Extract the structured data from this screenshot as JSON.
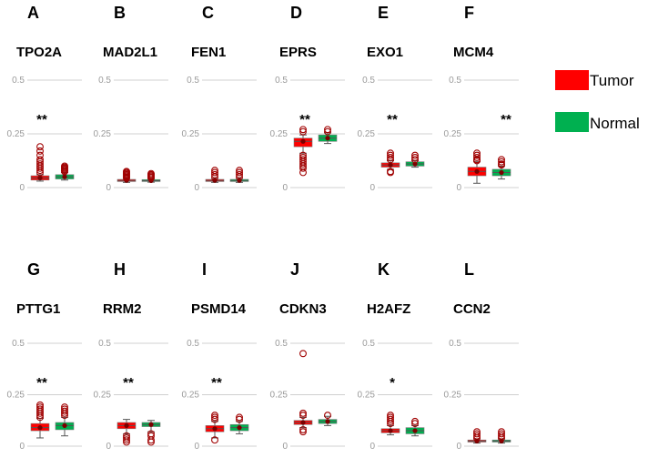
{
  "chart_data": {
    "type": "boxplot",
    "y_ticks": [
      "0.5",
      "0.25",
      "0"
    ],
    "ylim": [
      0,
      0.5
    ],
    "legend": [
      {
        "label": "Tumor",
        "color": "#ff0000"
      },
      {
        "label": "Normal",
        "color": "#00b050"
      }
    ],
    "panels": [
      {
        "letter": "A",
        "gene": "TPO2A",
        "sig": "**",
        "tumor": {
          "q1": 0.035,
          "median": 0.045,
          "q3": 0.055,
          "mean": 0.045,
          "lo": 0.03,
          "hi": 0.06,
          "outliers": [
            0.07,
            0.08,
            0.09,
            0.1,
            0.11,
            0.12,
            0.13,
            0.15,
            0.17,
            0.19
          ]
        },
        "normal": {
          "q1": 0.04,
          "median": 0.05,
          "q3": 0.06,
          "mean": 0.05,
          "lo": 0.035,
          "hi": 0.07,
          "outliers": [
            0.075,
            0.08,
            0.085,
            0.09,
            0.095,
            0.1
          ]
        }
      },
      {
        "letter": "B",
        "gene": "MAD2L1",
        "sig": "",
        "tumor": {
          "q1": 0.028,
          "median": 0.033,
          "q3": 0.038,
          "mean": 0.033,
          "lo": 0.024,
          "hi": 0.042,
          "outliers": [
            0.045,
            0.05,
            0.055,
            0.06,
            0.065,
            0.07,
            0.075
          ]
        },
        "normal": {
          "q1": 0.028,
          "median": 0.032,
          "q3": 0.037,
          "mean": 0.032,
          "lo": 0.025,
          "hi": 0.04,
          "outliers": [
            0.045,
            0.05,
            0.055,
            0.06,
            0.065
          ]
        }
      },
      {
        "letter": "C",
        "gene": "FEN1",
        "sig": "",
        "tumor": {
          "q1": 0.028,
          "median": 0.033,
          "q3": 0.038,
          "mean": 0.033,
          "lo": 0.024,
          "hi": 0.042,
          "outliers": [
            0.05,
            0.06,
            0.07,
            0.08
          ]
        },
        "normal": {
          "q1": 0.028,
          "median": 0.033,
          "q3": 0.038,
          "mean": 0.033,
          "lo": 0.024,
          "hi": 0.042,
          "outliers": [
            0.05,
            0.06,
            0.07,
            0.08
          ]
        }
      },
      {
        "letter": "D",
        "gene": "EPRS",
        "sig": "**",
        "tumor": {
          "q1": 0.19,
          "median": 0.215,
          "q3": 0.23,
          "mean": 0.215,
          "lo": 0.16,
          "hi": 0.245,
          "outliers": [
            0.07,
            0.09,
            0.1,
            0.11,
            0.12,
            0.13,
            0.14,
            0.15,
            0.26,
            0.27
          ]
        },
        "normal": {
          "q1": 0.215,
          "median": 0.23,
          "q3": 0.245,
          "mean": 0.23,
          "lo": 0.205,
          "hi": 0.255,
          "outliers": [
            0.26,
            0.27
          ]
        }
      },
      {
        "letter": "E",
        "gene": "EXO1",
        "sig": "**",
        "tumor": {
          "q1": 0.095,
          "median": 0.105,
          "q3": 0.115,
          "mean": 0.105,
          "lo": 0.085,
          "hi": 0.125,
          "outliers": [
            0.07,
            0.075,
            0.13,
            0.14,
            0.15,
            0.16
          ]
        },
        "normal": {
          "q1": 0.1,
          "median": 0.11,
          "q3": 0.12,
          "mean": 0.11,
          "lo": 0.095,
          "hi": 0.125,
          "outliers": [
            0.13,
            0.14,
            0.15
          ]
        }
      },
      {
        "letter": "F",
        "gene": "MCM4",
        "sig": "**",
        "tumor": {
          "q1": 0.055,
          "median": 0.075,
          "q3": 0.095,
          "mean": 0.075,
          "lo": 0.02,
          "hi": 0.12,
          "outliers": [
            0.125,
            0.13,
            0.14,
            0.15,
            0.16
          ]
        },
        "normal": {
          "q1": 0.055,
          "median": 0.07,
          "q3": 0.085,
          "mean": 0.07,
          "lo": 0.04,
          "hi": 0.1,
          "outliers": [
            0.105,
            0.11,
            0.12,
            0.13
          ]
        }
      },
      {
        "letter": "G",
        "gene": "PTTG1",
        "sig": "**",
        "tumor": {
          "q1": 0.075,
          "median": 0.09,
          "q3": 0.11,
          "mean": 0.09,
          "lo": 0.04,
          "hi": 0.135,
          "outliers": [
            0.14,
            0.15,
            0.16,
            0.17,
            0.18,
            0.19,
            0.2
          ]
        },
        "normal": {
          "q1": 0.08,
          "median": 0.1,
          "q3": 0.115,
          "mean": 0.1,
          "lo": 0.05,
          "hi": 0.14,
          "outliers": [
            0.15,
            0.16,
            0.17,
            0.18,
            0.19
          ]
        }
      },
      {
        "letter": "H",
        "gene": "RRM2",
        "sig": "**",
        "tumor": {
          "q1": 0.085,
          "median": 0.1,
          "q3": 0.115,
          "mean": 0.1,
          "lo": 0.06,
          "hi": 0.13,
          "outliers": [
            0.02,
            0.03,
            0.04,
            0.05
          ]
        },
        "normal": {
          "q1": 0.095,
          "median": 0.105,
          "q3": 0.115,
          "mean": 0.105,
          "lo": 0.07,
          "hi": 0.125,
          "outliers": [
            0.02,
            0.03,
            0.05,
            0.06
          ]
        }
      },
      {
        "letter": "I",
        "gene": "PSMD14",
        "sig": "**",
        "tumor": {
          "q1": 0.07,
          "median": 0.085,
          "q3": 0.1,
          "mean": 0.085,
          "lo": 0.04,
          "hi": 0.12,
          "outliers": [
            0.03,
            0.13,
            0.14,
            0.15
          ]
        },
        "normal": {
          "q1": 0.075,
          "median": 0.09,
          "q3": 0.105,
          "mean": 0.09,
          "lo": 0.06,
          "hi": 0.12,
          "outliers": [
            0.13,
            0.14
          ]
        }
      },
      {
        "letter": "J",
        "gene": "CDKN3",
        "sig": "",
        "tumor": {
          "q1": 0.105,
          "median": 0.115,
          "q3": 0.125,
          "mean": 0.115,
          "lo": 0.09,
          "hi": 0.14,
          "outliers": [
            0.07,
            0.08,
            0.15,
            0.16,
            0.45
          ]
        },
        "normal": {
          "q1": 0.11,
          "median": 0.12,
          "q3": 0.13,
          "mean": 0.12,
          "lo": 0.1,
          "hi": 0.145,
          "outliers": [
            0.15
          ]
        }
      },
      {
        "letter": "K",
        "gene": "H2AFZ",
        "sig": "*",
        "tumor": {
          "q1": 0.065,
          "median": 0.075,
          "q3": 0.085,
          "mean": 0.075,
          "lo": 0.055,
          "hi": 0.1,
          "outliers": [
            0.11,
            0.12,
            0.13,
            0.14,
            0.15
          ]
        },
        "normal": {
          "q1": 0.06,
          "median": 0.075,
          "q3": 0.09,
          "mean": 0.075,
          "lo": 0.05,
          "hi": 0.1,
          "outliers": [
            0.11,
            0.12
          ]
        }
      },
      {
        "letter": "L",
        "gene": "CCN2",
        "sig": "",
        "tumor": {
          "q1": 0.02,
          "median": 0.025,
          "q3": 0.03,
          "mean": 0.025,
          "lo": 0.015,
          "hi": 0.035,
          "outliers": [
            0.04,
            0.05,
            0.06,
            0.07
          ]
        },
        "normal": {
          "q1": 0.02,
          "median": 0.025,
          "q3": 0.03,
          "mean": 0.025,
          "lo": 0.015,
          "hi": 0.035,
          "outliers": [
            0.04,
            0.05,
            0.06,
            0.07
          ]
        }
      }
    ]
  }
}
